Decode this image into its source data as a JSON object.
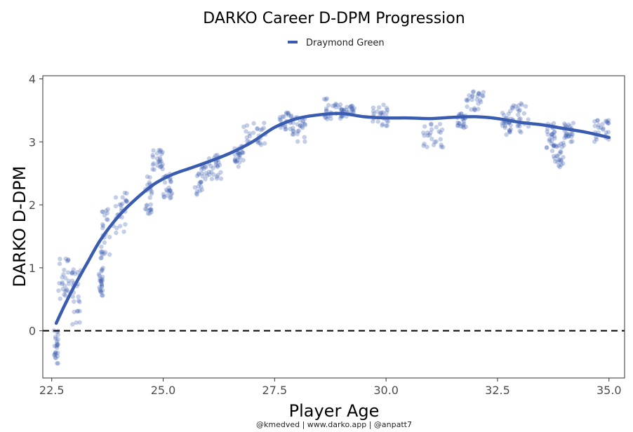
{
  "chart_data": {
    "type": "scatter",
    "title": "DARKO Career D-DPM Progression",
    "xlabel": "Player Age",
    "ylabel": "DARKO D-DPM",
    "caption": "@kmedved | www.darko.app | @anpatt7",
    "xlim": [
      22.3,
      35.35
    ],
    "ylim": [
      -0.75,
      4.05
    ],
    "x_ticks": [
      22.5,
      25.0,
      27.5,
      30.0,
      32.5,
      35.0
    ],
    "x_tick_labels": [
      "22.5",
      "25.0",
      "27.5",
      "30.0",
      "32.5",
      "35.0"
    ],
    "y_ticks": [
      0,
      1,
      2,
      3,
      4
    ],
    "y_tick_labels": [
      "0",
      "1",
      "2",
      "3",
      "4"
    ],
    "reference_line": {
      "y": 0,
      "style": "dashed"
    },
    "legend": {
      "position": "top",
      "entries": [
        "Draymond Green"
      ]
    },
    "series": [
      {
        "name": "Draymond Green",
        "color": "#3a5cb0",
        "smooth_curve": {
          "x": [
            22.6,
            22.8,
            23.0,
            23.3,
            23.6,
            24.0,
            24.4,
            24.8,
            25.2,
            25.6,
            26.0,
            26.5,
            27.0,
            27.5,
            28.0,
            28.5,
            29.0,
            29.5,
            30.0,
            30.5,
            31.0,
            31.5,
            32.0,
            32.5,
            33.0,
            33.5,
            34.0,
            34.5,
            35.0
          ],
          "y": [
            0.12,
            0.42,
            0.7,
            1.08,
            1.45,
            1.82,
            2.1,
            2.33,
            2.48,
            2.58,
            2.68,
            2.82,
            3.0,
            3.23,
            3.37,
            3.43,
            3.45,
            3.4,
            3.38,
            3.38,
            3.37,
            3.39,
            3.4,
            3.37,
            3.31,
            3.27,
            3.21,
            3.15,
            3.07
          ]
        },
        "point_clusters": [
          {
            "x": [
              22.55,
              22.65
            ],
            "y": [
              -0.55,
              0.05
            ]
          },
          {
            "x": [
              22.65,
              22.9
            ],
            "y": [
              0.45,
              1.2
            ]
          },
          {
            "x": [
              22.95,
              23.15
            ],
            "y": [
              0.1,
              1.0
            ]
          },
          {
            "x": [
              23.55,
              23.65
            ],
            "y": [
              0.55,
              1.0
            ]
          },
          {
            "x": [
              23.6,
              23.8
            ],
            "y": [
              1.15,
              1.95
            ]
          },
          {
            "x": [
              23.8,
              24.2
            ],
            "y": [
              1.5,
              2.2
            ]
          },
          {
            "x": [
              24.6,
              24.75
            ],
            "y": [
              1.85,
              2.5
            ]
          },
          {
            "x": [
              24.75,
              25.0
            ],
            "y": [
              2.55,
              2.88
            ]
          },
          {
            "x": [
              25.0,
              25.2
            ],
            "y": [
              2.1,
              2.5
            ]
          },
          {
            "x": [
              25.7,
              26.0
            ],
            "y": [
              2.15,
              2.7
            ]
          },
          {
            "x": [
              26.0,
              26.3
            ],
            "y": [
              2.4,
              2.8
            ]
          },
          {
            "x": [
              26.6,
              26.8
            ],
            "y": [
              2.6,
              2.95
            ]
          },
          {
            "x": [
              26.8,
              27.3
            ],
            "y": [
              2.95,
              3.3
            ]
          },
          {
            "x": [
              27.6,
              27.9
            ],
            "y": [
              3.2,
              3.5
            ]
          },
          {
            "x": [
              27.9,
              28.2
            ],
            "y": [
              3.0,
              3.4
            ]
          },
          {
            "x": [
              28.6,
              29.0
            ],
            "y": [
              3.35,
              3.7
            ]
          },
          {
            "x": [
              29.0,
              29.3
            ],
            "y": [
              3.4,
              3.6
            ]
          },
          {
            "x": [
              29.7,
              30.05
            ],
            "y": [
              3.25,
              3.6
            ]
          },
          {
            "x": [
              30.8,
              31.3
            ],
            "y": [
              2.9,
              3.3
            ]
          },
          {
            "x": [
              31.6,
              31.8
            ],
            "y": [
              3.2,
              3.45
            ]
          },
          {
            "x": [
              31.8,
              32.2
            ],
            "y": [
              3.5,
              3.82
            ]
          },
          {
            "x": [
              32.6,
              32.8
            ],
            "y": [
              3.1,
              3.5
            ]
          },
          {
            "x": [
              32.8,
              33.2
            ],
            "y": [
              3.15,
              3.62
            ]
          },
          {
            "x": [
              33.6,
              33.8
            ],
            "y": [
              2.85,
              3.3
            ]
          },
          {
            "x": [
              33.75,
              34.0
            ],
            "y": [
              2.6,
              3.0
            ]
          },
          {
            "x": [
              34.0,
              34.2
            ],
            "y": [
              3.0,
              3.3
            ]
          },
          {
            "x": [
              34.65,
              35.0
            ],
            "y": [
              3.0,
              3.35
            ]
          }
        ]
      }
    ],
    "grid": false
  }
}
